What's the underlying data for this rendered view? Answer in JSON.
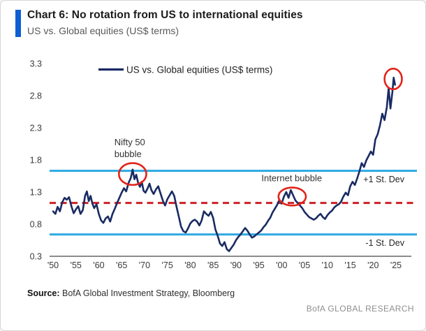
{
  "header": {
    "title": "Chart 6: No rotation from US to international equities",
    "subtitle": "US vs. Global equities (US$ terms)",
    "accent_color": "#0e5fd3"
  },
  "footer": {
    "source_label": "Source:",
    "source_text": " BofA Global Investment Strategy, Bloomberg",
    "brand": "BofA GLOBAL RESEARCH"
  },
  "chart_data": {
    "type": "line",
    "title": "US vs. Global equities (US$ terms)",
    "xlabel": "",
    "ylabel": "",
    "xlim": [
      1950,
      2025
    ],
    "ylim": [
      0.3,
      3.3
    ],
    "grid": false,
    "legend_position": "top",
    "legend": [
      {
        "label": "US vs. Global equities (US$ terms)",
        "color": "#192b63"
      }
    ],
    "y_ticks": [
      3.3,
      2.8,
      2.3,
      1.8,
      1.3,
      0.8,
      0.3
    ],
    "x_ticks": [
      {
        "year": 1950,
        "label": "'50"
      },
      {
        "year": 1955,
        "label": "'55"
      },
      {
        "year": 1960,
        "label": "'60"
      },
      {
        "year": 1965,
        "label": "'65"
      },
      {
        "year": 1970,
        "label": "'70"
      },
      {
        "year": 1975,
        "label": "'75"
      },
      {
        "year": 1980,
        "label": "'80"
      },
      {
        "year": 1985,
        "label": "'85"
      },
      {
        "year": 1990,
        "label": "'90"
      },
      {
        "year": 1995,
        "label": "'95"
      },
      {
        "year": 2000,
        "label": "'00"
      },
      {
        "year": 2005,
        "label": "'05"
      },
      {
        "year": 2010,
        "label": "'10"
      },
      {
        "year": 2015,
        "label": "'15"
      },
      {
        "year": 2020,
        "label": "'20"
      },
      {
        "year": 2025,
        "label": "'25"
      }
    ],
    "reference_lines": [
      {
        "name": "plus-1-std-dev",
        "label": "+1 St. Dev",
        "value": 1.63,
        "color": "#2ca9e1",
        "style": "solid"
      },
      {
        "name": "mean",
        "label": "",
        "value": 1.13,
        "color": "#cb2026",
        "style": "dashed"
      },
      {
        "name": "minus-1-std-dev",
        "label": "-1 St. Dev",
        "value": 0.64,
        "color": "#2ca9e1",
        "style": "solid"
      }
    ],
    "annotations": [
      {
        "name": "nifty-50-bubble-label",
        "lines": [
          "Nifty 50",
          "bubble"
        ],
        "year": 1963.4,
        "value": 2.03,
        "align": "start"
      },
      {
        "name": "internet-bubble-label",
        "lines": [
          "Internet bubble"
        ],
        "year": 2002.2,
        "value": 1.47,
        "align": "middle"
      }
    ],
    "ellipse_color": "#e2231a",
    "ellipses": [
      {
        "name": "nifty-50-bubble-circle",
        "cx_year": 1967.4,
        "cy_value": 1.58,
        "rx_years": 3.0,
        "ry_values": 0.17
      },
      {
        "name": "internet-bubble-circle",
        "cx_year": 2002.3,
        "cy_value": 1.23,
        "rx_years": 3.0,
        "ry_values": 0.14
      },
      {
        "name": "current-peak-circle",
        "cx_year": 2024.4,
        "cy_value": 3.06,
        "rx_years": 1.9,
        "ry_values": 0.16
      }
    ],
    "series": [
      {
        "name": "US vs. Global equities (US$ terms)",
        "color": "#192b63",
        "points": [
          [
            1950.0,
            1.0
          ],
          [
            1950.5,
            0.96
          ],
          [
            1951.0,
            1.07
          ],
          [
            1951.5,
            1.0
          ],
          [
            1952.0,
            1.14
          ],
          [
            1952.5,
            1.21
          ],
          [
            1953.0,
            1.18
          ],
          [
            1953.5,
            1.22
          ],
          [
            1954.0,
            1.08
          ],
          [
            1954.5,
            0.97
          ],
          [
            1955.0,
            1.03
          ],
          [
            1955.5,
            1.08
          ],
          [
            1956.0,
            0.96
          ],
          [
            1956.5,
            1.02
          ],
          [
            1957.0,
            1.24
          ],
          [
            1957.4,
            1.31
          ],
          [
            1957.8,
            1.16
          ],
          [
            1958.2,
            1.24
          ],
          [
            1958.6,
            1.12
          ],
          [
            1959.0,
            1.05
          ],
          [
            1959.5,
            1.11
          ],
          [
            1960.0,
            0.96
          ],
          [
            1960.5,
            0.86
          ],
          [
            1961.0,
            0.82
          ],
          [
            1961.5,
            0.89
          ],
          [
            1962.0,
            0.92
          ],
          [
            1962.5,
            0.84
          ],
          [
            1963.0,
            0.96
          ],
          [
            1963.5,
            1.04
          ],
          [
            1964.0,
            1.13
          ],
          [
            1964.5,
            1.21
          ],
          [
            1965.0,
            1.29
          ],
          [
            1965.5,
            1.36
          ],
          [
            1966.0,
            1.31
          ],
          [
            1966.5,
            1.44
          ],
          [
            1967.0,
            1.52
          ],
          [
            1967.4,
            1.65
          ],
          [
            1967.8,
            1.5
          ],
          [
            1968.2,
            1.57
          ],
          [
            1968.6,
            1.44
          ],
          [
            1969.0,
            1.38
          ],
          [
            1969.4,
            1.46
          ],
          [
            1969.8,
            1.32
          ],
          [
            1970.2,
            1.29
          ],
          [
            1970.7,
            1.36
          ],
          [
            1971.1,
            1.43
          ],
          [
            1971.5,
            1.33
          ],
          [
            1972.0,
            1.27
          ],
          [
            1972.5,
            1.34
          ],
          [
            1973.0,
            1.39
          ],
          [
            1973.5,
            1.28
          ],
          [
            1974.0,
            1.17
          ],
          [
            1974.5,
            1.09
          ],
          [
            1975.0,
            1.19
          ],
          [
            1975.5,
            1.25
          ],
          [
            1976.0,
            1.31
          ],
          [
            1976.5,
            1.24
          ],
          [
            1977.0,
            1.07
          ],
          [
            1977.5,
            0.92
          ],
          [
            1978.0,
            0.76
          ],
          [
            1978.5,
            0.69
          ],
          [
            1979.0,
            0.67
          ],
          [
            1979.5,
            0.73
          ],
          [
            1980.0,
            0.81
          ],
          [
            1980.5,
            0.85
          ],
          [
            1981.0,
            0.87
          ],
          [
            1981.5,
            0.84
          ],
          [
            1982.0,
            0.78
          ],
          [
            1982.5,
            0.86
          ],
          [
            1983.0,
            1.0
          ],
          [
            1983.5,
            0.96
          ],
          [
            1984.0,
            0.93
          ],
          [
            1984.5,
            0.99
          ],
          [
            1985.0,
            0.9
          ],
          [
            1985.5,
            0.72
          ],
          [
            1986.0,
            0.62
          ],
          [
            1986.5,
            0.5
          ],
          [
            1987.0,
            0.46
          ],
          [
            1987.5,
            0.52
          ],
          [
            1988.0,
            0.41
          ],
          [
            1988.5,
            0.38
          ],
          [
            1989.0,
            0.43
          ],
          [
            1989.5,
            0.48
          ],
          [
            1990.0,
            0.55
          ],
          [
            1990.5,
            0.6
          ],
          [
            1991.0,
            0.64
          ],
          [
            1991.5,
            0.69
          ],
          [
            1992.0,
            0.74
          ],
          [
            1992.5,
            0.7
          ],
          [
            1993.0,
            0.64
          ],
          [
            1993.5,
            0.59
          ],
          [
            1994.0,
            0.61
          ],
          [
            1994.5,
            0.64
          ],
          [
            1995.0,
            0.67
          ],
          [
            1995.5,
            0.7
          ],
          [
            1996.0,
            0.75
          ],
          [
            1996.5,
            0.79
          ],
          [
            1997.0,
            0.85
          ],
          [
            1997.5,
            0.9
          ],
          [
            1998.0,
            0.98
          ],
          [
            1998.5,
            1.04
          ],
          [
            1999.0,
            1.1
          ],
          [
            1999.5,
            1.18
          ],
          [
            2000.0,
            1.12
          ],
          [
            2000.5,
            1.23
          ],
          [
            2001.0,
            1.3
          ],
          [
            2001.5,
            1.21
          ],
          [
            2002.0,
            1.33
          ],
          [
            2002.5,
            1.25
          ],
          [
            2003.0,
            1.17
          ],
          [
            2003.5,
            1.13
          ],
          [
            2004.0,
            1.09
          ],
          [
            2004.5,
            1.05
          ],
          [
            2005.0,
            0.99
          ],
          [
            2005.5,
            0.95
          ],
          [
            2006.0,
            0.91
          ],
          [
            2006.5,
            0.89
          ],
          [
            2007.0,
            0.87
          ],
          [
            2007.5,
            0.89
          ],
          [
            2008.0,
            0.93
          ],
          [
            2008.5,
            0.96
          ],
          [
            2009.0,
            0.91
          ],
          [
            2009.5,
            0.88
          ],
          [
            2010.0,
            0.94
          ],
          [
            2010.5,
            0.98
          ],
          [
            2011.0,
            1.01
          ],
          [
            2011.5,
            1.06
          ],
          [
            2012.0,
            1.09
          ],
          [
            2012.5,
            1.11
          ],
          [
            2013.0,
            1.15
          ],
          [
            2013.5,
            1.23
          ],
          [
            2014.0,
            1.29
          ],
          [
            2014.5,
            1.25
          ],
          [
            2015.0,
            1.39
          ],
          [
            2015.5,
            1.46
          ],
          [
            2016.0,
            1.41
          ],
          [
            2016.5,
            1.51
          ],
          [
            2017.0,
            1.62
          ],
          [
            2017.5,
            1.75
          ],
          [
            2018.0,
            1.69
          ],
          [
            2018.5,
            1.79
          ],
          [
            2019.0,
            1.86
          ],
          [
            2019.5,
            1.93
          ],
          [
            2020.0,
            1.88
          ],
          [
            2020.5,
            2.12
          ],
          [
            2021.0,
            2.2
          ],
          [
            2021.5,
            2.34
          ],
          [
            2022.0,
            2.52
          ],
          [
            2022.5,
            2.42
          ],
          [
            2023.0,
            2.62
          ],
          [
            2023.4,
            2.92
          ],
          [
            2023.8,
            2.6
          ],
          [
            2024.2,
            2.85
          ],
          [
            2024.5,
            3.08
          ],
          [
            2024.8,
            2.97
          ]
        ]
      }
    ]
  }
}
